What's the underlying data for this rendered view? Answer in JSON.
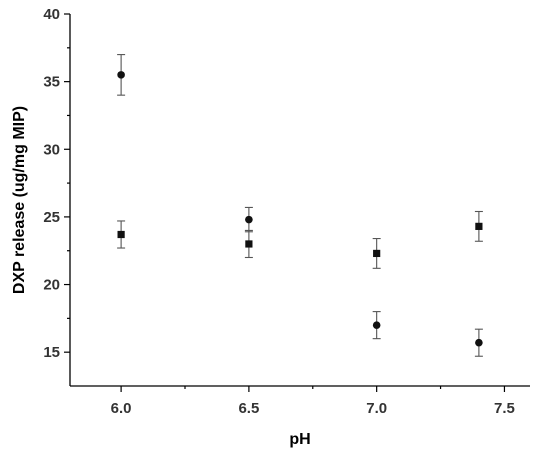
{
  "chart_data": {
    "type": "scatter",
    "title": "",
    "xlabel": "pH",
    "ylabel": "DXP release (ug/mg MIP)",
    "xlim": [
      5.8,
      7.6
    ],
    "ylim": [
      12.5,
      40
    ],
    "x_ticks": [
      6.0,
      6.5,
      7.0,
      7.5
    ],
    "x_tick_labels": [
      "6.0",
      "6.5",
      "7.0",
      "7.5"
    ],
    "y_ticks": [
      15,
      20,
      25,
      30,
      35,
      40
    ],
    "y_tick_labels": [
      "15",
      "20",
      "25",
      "30",
      "35",
      "40"
    ],
    "grid": false,
    "legend": "none",
    "series": [
      {
        "marker": "circle",
        "color": "#111111",
        "points": [
          {
            "x": 6.0,
            "y": 35.5,
            "err": 1.5
          },
          {
            "x": 6.5,
            "y": 24.8,
            "err": 0.9
          },
          {
            "x": 7.0,
            "y": 17.0,
            "err": 1.0
          },
          {
            "x": 7.4,
            "y": 15.7,
            "err": 1.0
          }
        ]
      },
      {
        "marker": "square",
        "color": "#111111",
        "points": [
          {
            "x": 6.0,
            "y": 23.7,
            "err": 1.0
          },
          {
            "x": 6.5,
            "y": 23.0,
            "err": 1.0
          },
          {
            "x": 7.0,
            "y": 22.3,
            "err": 1.1
          },
          {
            "x": 7.4,
            "y": 24.3,
            "err": 1.1
          }
        ]
      }
    ]
  }
}
